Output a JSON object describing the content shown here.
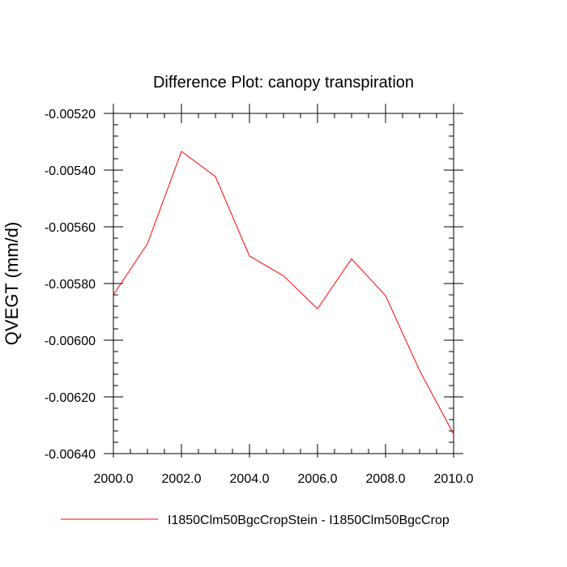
{
  "chart_data": {
    "type": "line",
    "title": "Difference Plot: canopy transpiration",
    "xlabel": "",
    "ylabel": "QVEGT  (mm/d)",
    "xlim": [
      2000.0,
      2010.0
    ],
    "ylim": [
      -0.0064,
      -0.0052
    ],
    "x_ticks": [
      2000.0,
      2002.0,
      2004.0,
      2006.0,
      2008.0,
      2010.0
    ],
    "x_tick_labels": [
      "2000.0",
      "2002.0",
      "2004.0",
      "2006.0",
      "2008.0",
      "2010.0"
    ],
    "y_ticks": [
      -0.0052,
      -0.0054,
      -0.0056,
      -0.0058,
      -0.006,
      -0.0062,
      -0.0064
    ],
    "y_tick_labels": [
      "-0.00520",
      "-0.00540",
      "-0.00560",
      "-0.00580",
      "-0.00600",
      "-0.00620",
      "-0.00640"
    ],
    "grid": false,
    "legend_position": "bottom",
    "series": [
      {
        "name": "I1850Clm50BgcCropStein - I1850Clm50BgcCrop",
        "color": "#ff0000",
        "x": [
          2000,
          2001,
          2002,
          2003,
          2004,
          2005,
          2006,
          2007,
          2008,
          2009,
          2010
        ],
        "y": [
          -0.00584,
          -0.00566,
          -0.005334,
          -0.005423,
          -0.005703,
          -0.005773,
          -0.005889,
          -0.005713,
          -0.005843,
          -0.006107,
          -0.006331
        ]
      }
    ]
  }
}
